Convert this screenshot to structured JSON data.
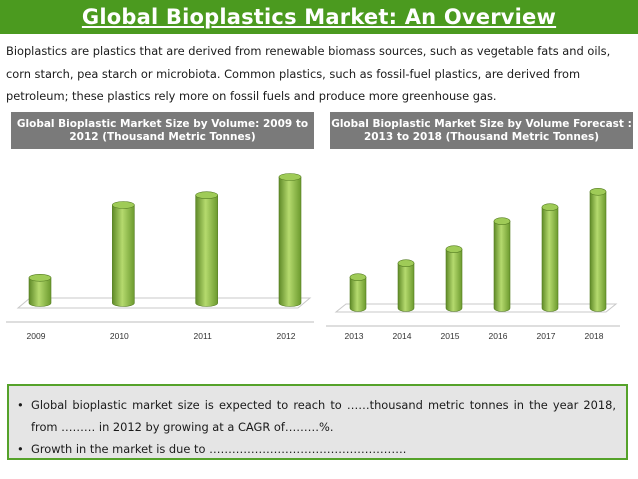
{
  "header": {
    "title": "Global Bioplastics Market: An Overview"
  },
  "intro": "Bioplastics are plastics that are derived from renewable biomass sources, such as vegetable fats and oils, corn starch, pea starch or microbiota. Common plastics, such as fossil-fuel plastics, are derived from petroleum; these plastics rely more on fossil fuels and produce more greenhouse gas.",
  "colors": {
    "title_bg": "#4b9a1f",
    "bar": "#8cb84a",
    "panel_border": "#55a22a"
  },
  "chart_data": [
    {
      "type": "bar",
      "title": "Global Bioplastic Market Size by Volume: 2009 to 2012 (Thousand Metric Tonnes)",
      "categories": [
        "2009",
        "2010",
        "2011",
        "2012"
      ],
      "values": [
        18,
        70,
        77,
        90
      ],
      "ylim": [
        0,
        100
      ],
      "grid": false,
      "legend": "none"
    },
    {
      "type": "bar",
      "title": "Global Bioplastic Market Size by Volume Forecast : 2013 to 2018 (Thousand Metric Tonnes)",
      "categories": [
        "2013",
        "2014",
        "2015",
        "2016",
        "2017",
        "2018"
      ],
      "values": [
        22,
        32,
        42,
        62,
        72,
        83
      ],
      "ylim": [
        0,
        100
      ],
      "grid": false,
      "legend": "none"
    }
  ],
  "bullets": [
    "Global bioplastic market size is expected to reach to ……thousand metric tonnes in the year 2018, from ……… in 2012 by growing at a CAGR of………%.",
    "Growth in the market is due to ……………………………………………."
  ]
}
